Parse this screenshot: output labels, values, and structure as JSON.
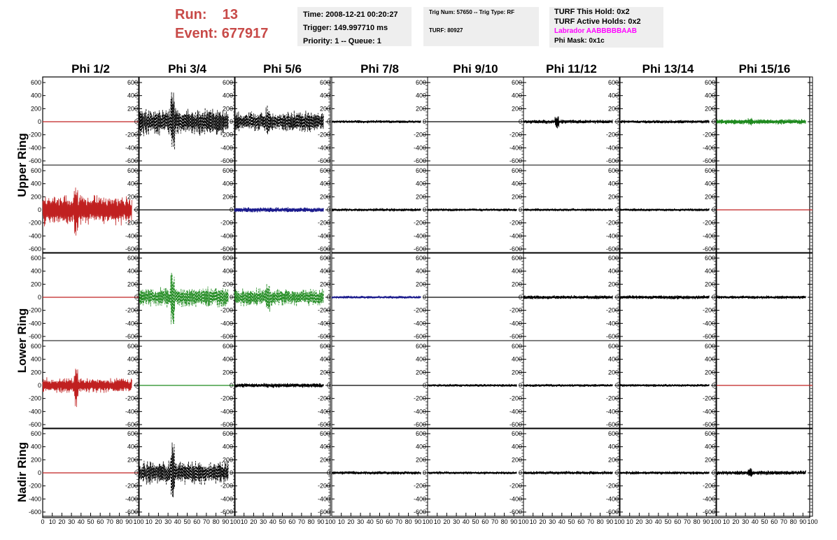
{
  "run_info": {
    "run_label": "Run:",
    "run_value": "13",
    "event_label": "Event:",
    "event_value": "677917"
  },
  "time_box": {
    "time": "Time: 2008-12-21 00:20:27",
    "trigger": "Trigger: 149.997710 ms",
    "priority": "Priority: 1 -- Queue: 1"
  },
  "trig_box": {
    "trig": "Trig Num: 57650 -- Trig Type: RF",
    "turf": "TURF: 80927"
  },
  "turf_box": {
    "this_hold": "TURF This Hold: 0x2",
    "active_holds": "TURF Active Holds: 0x2",
    "labrador": "Labrador AABBBBBAAB",
    "phi_mask": "Phi Mask: 0x1c",
    "labrador_color": "#ff00ff"
  },
  "chart_data": {
    "type": "line",
    "columns": [
      "Phi 1/2",
      "Phi 3/4",
      "Phi 5/6",
      "Phi 7/8",
      "Phi 9/10",
      "Phi 11/12",
      "Phi 13/14",
      "Phi 15/16"
    ],
    "rings": [
      {
        "label": "Upper Ring",
        "rows": [
          0,
          1
        ]
      },
      {
        "label": "Lower Ring",
        "rows": [
          2,
          3
        ]
      },
      {
        "label": "Nadir Ring",
        "rows": [
          4
        ]
      }
    ],
    "xlim": [
      0,
      100
    ],
    "ylim": [
      -600,
      600
    ],
    "x_ticks": [
      0,
      10,
      20,
      30,
      40,
      50,
      60,
      70,
      80,
      90,
      100
    ],
    "x_tick_labels": [
      "0",
      "10",
      "20",
      "30",
      "40",
      "50",
      "60",
      "70",
      "80",
      "90",
      "100"
    ],
    "y_ticks": [
      -600,
      -400,
      -200,
      0,
      200,
      400,
      600
    ],
    "y_tick_labels": [
      "-600",
      "-400",
      "-200",
      "0",
      "200",
      "400",
      "600"
    ],
    "colors": {
      "red": "#c02020",
      "black": "#000000",
      "green": "#1f8a1f",
      "blue": "#1a1a8c"
    },
    "panels": [
      [
        {
          "color": "red",
          "amplitude": 0,
          "dashed": false
        },
        {
          "color": "black",
          "amplitude": 230,
          "dashed": true,
          "spike": 600
        },
        {
          "color": "black",
          "amplitude": 180,
          "dashed": true,
          "spike": 280
        },
        {
          "color": "black",
          "amplitude": 25,
          "dashed": false
        },
        {
          "color": "black",
          "amplitude": 0,
          "dashed": false
        },
        {
          "color": "black",
          "amplitude": 35,
          "dashed": false,
          "spike": 120
        },
        {
          "color": "black",
          "amplitude": 30,
          "dashed": false
        },
        {
          "color": "green",
          "amplitude": 45,
          "dashed": false,
          "spike": 75
        }
      ],
      [
        {
          "color": "red",
          "amplitude": 260,
          "dashed": false,
          "spike": 560
        },
        {
          "color": "black",
          "amplitude": 0,
          "dashed": false
        },
        {
          "color": "blue",
          "amplitude": 45,
          "dashed": false
        },
        {
          "color": "black",
          "amplitude": 28,
          "dashed": false
        },
        {
          "color": "black",
          "amplitude": 25,
          "dashed": false
        },
        {
          "color": "black",
          "amplitude": 25,
          "dashed": false
        },
        {
          "color": "black",
          "amplitude": 25,
          "dashed": false
        },
        {
          "color": "red",
          "amplitude": 0,
          "dashed": false
        }
      ],
      [
        {
          "color": "red",
          "amplitude": 0,
          "dashed": false
        },
        {
          "color": "green",
          "amplitude": 170,
          "dashed": true,
          "spike": 480
        },
        {
          "color": "green",
          "amplitude": 150,
          "dashed": true,
          "spike": 260
        },
        {
          "color": "blue",
          "amplitude": 25,
          "dashed": false
        },
        {
          "color": "black",
          "amplitude": 0,
          "dashed": false
        },
        {
          "color": "black",
          "amplitude": 35,
          "dashed": false
        },
        {
          "color": "black",
          "amplitude": 35,
          "dashed": false
        },
        {
          "color": "black",
          "amplitude": 30,
          "dashed": false
        }
      ],
      [
        {
          "color": "red",
          "amplitude": 130,
          "dashed": false,
          "spike": 360
        },
        {
          "color": "green",
          "amplitude": 0,
          "dashed": false
        },
        {
          "color": "black",
          "amplitude": 40,
          "dashed": false
        },
        {
          "color": "black",
          "amplitude": 0,
          "dashed": false
        },
        {
          "color": "black",
          "amplitude": 25,
          "dashed": false
        },
        {
          "color": "black",
          "amplitude": 25,
          "dashed": false
        },
        {
          "color": "black",
          "amplitude": 25,
          "dashed": false
        },
        {
          "color": "red",
          "amplitude": 0,
          "dashed": false
        }
      ],
      [
        {
          "color": "red",
          "amplitude": 0,
          "dashed": false
        },
        {
          "color": "black",
          "amplitude": 200,
          "dashed": true,
          "spike": 550
        },
        {
          "color": "black",
          "amplitude": 0,
          "dashed": false
        },
        {
          "color": "black",
          "amplitude": 30,
          "dashed": false
        },
        {
          "color": "black",
          "amplitude": 25,
          "dashed": false
        },
        {
          "color": "black",
          "amplitude": 30,
          "dashed": false
        },
        {
          "color": "black",
          "amplitude": 28,
          "dashed": false
        },
        {
          "color": "black",
          "amplitude": 40,
          "dashed": false,
          "spike": 90
        }
      ]
    ]
  }
}
